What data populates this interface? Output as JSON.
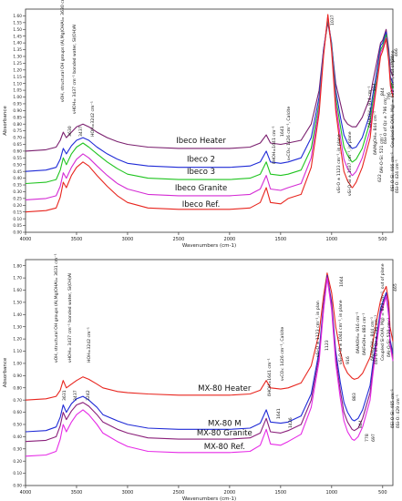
{
  "chart_data": [
    {
      "type": "line",
      "ylabel": "Absorbance",
      "xlabel": "Wavenumbers (cm-1)",
      "xlim": [
        4000,
        400
      ],
      "ylim": [
        0.0,
        1.65
      ],
      "x_ticks": [
        4000,
        3500,
        3000,
        2500,
        2000,
        1500,
        1000,
        500
      ],
      "y_ticks": [
        0.0,
        0.05,
        0.1,
        0.15,
        0.2,
        0.25,
        0.3,
        0.35,
        0.4,
        0.45,
        0.5,
        0.55,
        0.6,
        0.65,
        0.7,
        0.75,
        0.8,
        0.85,
        0.9,
        0.95,
        1.0,
        1.05,
        1.1,
        1.15,
        1.2,
        1.25,
        1.3,
        1.35,
        1.4,
        1.45,
        1.5,
        1.55,
        1.6
      ],
      "grid": false,
      "x": [
        4000,
        3800,
        3700,
        3660,
        3630,
        3600,
        3550,
        3500,
        3437,
        3380,
        3300,
        3200,
        3100,
        3000,
        2800,
        2500,
        2200,
        2000,
        1800,
        1700,
        1641,
        1600,
        1500,
        1426,
        1300,
        1200,
        1123,
        1080,
        1037,
        1000,
        960,
        914,
        880,
        844,
        800,
        796,
        760,
        700,
        622,
        600,
        560,
        521,
        500,
        466,
        440,
        424,
        400
      ],
      "series": [
        {
          "name": "Ibeco Heater",
          "color": "#7a1f6e",
          "values": [
            0.6,
            0.61,
            0.63,
            0.68,
            0.74,
            0.7,
            0.74,
            0.78,
            0.8,
            0.78,
            0.74,
            0.7,
            0.67,
            0.65,
            0.63,
            0.62,
            0.62,
            0.62,
            0.63,
            0.66,
            0.72,
            0.66,
            0.65,
            0.66,
            0.68,
            0.8,
            1.05,
            1.35,
            1.55,
            1.38,
            1.1,
            0.95,
            0.84,
            0.8,
            0.78,
            0.78,
            0.78,
            0.85,
            1.0,
            1.1,
            1.25,
            1.4,
            1.42,
            1.5,
            1.35,
            1.2,
            1.15
          ]
        },
        {
          "name": "Ibeco 2",
          "color": "#1f2ad6",
          "values": [
            0.45,
            0.46,
            0.48,
            0.54,
            0.62,
            0.58,
            0.64,
            0.68,
            0.7,
            0.68,
            0.63,
            0.58,
            0.54,
            0.51,
            0.49,
            0.48,
            0.48,
            0.48,
            0.49,
            0.52,
            0.6,
            0.52,
            0.51,
            0.52,
            0.55,
            0.7,
            1.0,
            1.35,
            1.57,
            1.4,
            1.05,
            0.85,
            0.72,
            0.66,
            0.62,
            0.62,
            0.63,
            0.7,
            0.88,
            1.0,
            1.18,
            1.38,
            1.4,
            1.48,
            1.32,
            1.15,
            1.1
          ]
        },
        {
          "name": "Ibeco 3",
          "color": "#1fc41f",
          "values": [
            0.36,
            0.37,
            0.39,
            0.46,
            0.55,
            0.5,
            0.58,
            0.63,
            0.66,
            0.63,
            0.58,
            0.52,
            0.47,
            0.43,
            0.4,
            0.39,
            0.39,
            0.39,
            0.4,
            0.43,
            0.52,
            0.43,
            0.42,
            0.43,
            0.46,
            0.62,
            0.95,
            1.33,
            1.58,
            1.38,
            1.0,
            0.78,
            0.63,
            0.57,
            0.52,
            0.52,
            0.54,
            0.62,
            0.82,
            0.95,
            1.13,
            1.35,
            1.38,
            1.46,
            1.3,
            1.12,
            1.06
          ]
        },
        {
          "name": "Ibeco Granite",
          "color": "#d42bd4",
          "values": [
            0.24,
            0.25,
            0.27,
            0.34,
            0.44,
            0.4,
            0.48,
            0.54,
            0.58,
            0.55,
            0.49,
            0.42,
            0.36,
            0.32,
            0.28,
            0.27,
            0.27,
            0.27,
            0.28,
            0.32,
            0.42,
            0.32,
            0.31,
            0.33,
            0.36,
            0.55,
            0.92,
            1.32,
            1.6,
            1.36,
            0.95,
            0.7,
            0.54,
            0.47,
            0.42,
            0.42,
            0.45,
            0.55,
            0.76,
            0.9,
            1.1,
            1.33,
            1.36,
            1.44,
            1.28,
            1.1,
            1.03
          ]
        },
        {
          "name": "Ibeco Ref.",
          "color": "#e8251e",
          "values": [
            0.15,
            0.16,
            0.18,
            0.26,
            0.37,
            0.33,
            0.42,
            0.48,
            0.52,
            0.49,
            0.42,
            0.34,
            0.27,
            0.22,
            0.18,
            0.17,
            0.17,
            0.17,
            0.18,
            0.22,
            0.33,
            0.22,
            0.21,
            0.25,
            0.28,
            0.48,
            0.88,
            1.3,
            1.61,
            1.34,
            0.9,
            0.63,
            0.45,
            0.38,
            0.33,
            0.33,
            0.37,
            0.48,
            0.7,
            0.86,
            1.08,
            1.3,
            1.34,
            1.43,
            1.26,
            1.08,
            1.0
          ]
        }
      ],
      "curve_labels": [
        "Ibeco Heater",
        "Ibeco 2",
        "Ibeco 3",
        "Ibeco Granite",
        "Ibeco  Ref."
      ],
      "annotations": [
        "3630",
        "3437",
        "νOH, structural OH groups (Al,Mg)OHAl= 3630 cm⁻¹",
        "νHOH= 3437 cm⁻¹ bonded water, Si(OH)Al",
        "HOH=3242 cm⁻¹",
        "1641",
        "δHOH=1641 cm⁻¹",
        "ν₃CO₃: 1426 cm⁻¹, Calcite",
        "νSi-O ± 1123 cm⁻¹, in plane",
        "1037",
        "νSi-O-Si ± 1037 cm⁻¹, in plane",
        "914",
        "δAlAlOH= 914 cm⁻¹",
        "844",
        "δAlMgOH= 844 cm⁻¹",
        "796",
        "δSi-O of Qz ± 796 cm⁻¹",
        "622",
        "Coupled Si-O(Al, Mg) = 622 cm⁻¹, out of plane",
        "δAl-O-Si: 521 cm⁻¹",
        "466",
        "424",
        "δSi-O-Si: 466 cm⁻¹",
        "δSi-O: 424 cm⁻¹"
      ]
    },
    {
      "type": "line",
      "ylabel": "Absorbance",
      "xlabel": "Wavenumbers (cm-1)",
      "xlim": [
        4000,
        400
      ],
      "ylim": [
        0.0,
        1.85
      ],
      "x_ticks": [
        4000,
        3500,
        3000,
        2500,
        2000,
        1500,
        1000,
        500
      ],
      "y_ticks": [
        0.0,
        0.1,
        0.2,
        0.3,
        0.4,
        0.5,
        0.6,
        0.7,
        0.8,
        0.9,
        1.0,
        1.1,
        1.2,
        1.3,
        1.4,
        1.5,
        1.6,
        1.7,
        1.8
      ],
      "grid": false,
      "x": [
        4000,
        3800,
        3700,
        3660,
        3631,
        3600,
        3550,
        3500,
        3437,
        3380,
        3300,
        3242,
        3100,
        3000,
        2800,
        2500,
        2200,
        2000,
        1800,
        1700,
        1641,
        1600,
        1500,
        1426,
        1300,
        1200,
        1123,
        1080,
        1044,
        1000,
        960,
        916,
        880,
        844,
        800,
        778,
        740,
        697,
        623,
        600,
        560,
        520,
        500,
        465,
        440,
        429,
        400
      ],
      "series": [
        {
          "name": "MX-80 Heater",
          "color": "#e8251e",
          "values": [
            0.7,
            0.71,
            0.73,
            0.78,
            0.86,
            0.8,
            0.83,
            0.86,
            0.89,
            0.87,
            0.83,
            0.8,
            0.77,
            0.76,
            0.75,
            0.74,
            0.74,
            0.74,
            0.75,
            0.78,
            0.86,
            0.8,
            0.79,
            0.8,
            0.84,
            0.98,
            1.25,
            1.55,
            1.74,
            1.58,
            1.3,
            1.1,
            0.98,
            0.92,
            0.88,
            0.87,
            0.88,
            0.92,
            1.05,
            1.15,
            1.35,
            1.52,
            1.57,
            1.63,
            1.5,
            1.3,
            1.18
          ]
        },
        {
          "name": "MX-80 M",
          "color": "#1f2ad6",
          "values": [
            0.44,
            0.45,
            0.48,
            0.56,
            0.66,
            0.6,
            0.67,
            0.71,
            0.73,
            0.7,
            0.64,
            0.58,
            0.53,
            0.5,
            0.47,
            0.46,
            0.46,
            0.46,
            0.47,
            0.51,
            0.62,
            0.52,
            0.51,
            0.52,
            0.57,
            0.75,
            1.1,
            1.48,
            1.72,
            1.5,
            1.1,
            0.85,
            0.68,
            0.6,
            0.54,
            0.53,
            0.55,
            0.62,
            0.82,
            0.97,
            1.22,
            1.45,
            1.5,
            1.58,
            1.42,
            1.2,
            1.08
          ]
        },
        {
          "name": "MX-80 Granite",
          "color": "#8a1f7a",
          "values": [
            0.36,
            0.37,
            0.4,
            0.49,
            0.6,
            0.54,
            0.61,
            0.66,
            0.68,
            0.65,
            0.58,
            0.52,
            0.46,
            0.43,
            0.39,
            0.38,
            0.38,
            0.38,
            0.39,
            0.43,
            0.55,
            0.44,
            0.43,
            0.45,
            0.5,
            0.7,
            1.06,
            1.45,
            1.71,
            1.47,
            1.05,
            0.78,
            0.6,
            0.52,
            0.46,
            0.45,
            0.47,
            0.55,
            0.76,
            0.92,
            1.18,
            1.42,
            1.47,
            1.56,
            1.4,
            1.17,
            1.05
          ]
        },
        {
          "name": "MX-80 Ref.",
          "color": "#e62ae6",
          "values": [
            0.24,
            0.25,
            0.28,
            0.38,
            0.5,
            0.44,
            0.52,
            0.58,
            0.62,
            0.58,
            0.5,
            0.43,
            0.36,
            0.32,
            0.28,
            0.27,
            0.27,
            0.27,
            0.28,
            0.33,
            0.46,
            0.34,
            0.33,
            0.36,
            0.42,
            0.64,
            1.02,
            1.43,
            1.7,
            1.44,
            1.0,
            0.72,
            0.53,
            0.44,
            0.38,
            0.37,
            0.4,
            0.48,
            0.7,
            0.88,
            1.15,
            1.4,
            1.45,
            1.55,
            1.38,
            1.15,
            1.02
          ]
        }
      ],
      "curve_labels": [
        "MX-80 Heater",
        "MX-80 M",
        "MX-80 Granite",
        "MX-80 Ref."
      ],
      "annotations": [
        "3631",
        "3437",
        "3242",
        "νOH, structural OH groups (Al,Mg)OHAl= 3631 cm⁻¹",
        "νHOH= 3437 cm⁻¹ bonded water, Si(OH)Al",
        "HOH=3242 cm⁻¹",
        "1641",
        "δHOH=1641 cm⁻¹",
        "1426",
        "ν₃CO₃: 1426 cm⁻¹, Calcite",
        "1123",
        "νSi-O ± 1123 cm⁻¹, in plan",
        "1044",
        "νSi-O-Si ± 1044 cm⁻¹, in plane",
        "916",
        "δAlAlOH= 916 cm⁻¹",
        "883",
        "δAlFeOH= 883 cm⁻¹",
        "844",
        "δAlMgOH= 844 cm⁻¹",
        "778",
        "δSi-O of Qz ± 796 cm⁻¹",
        "697",
        "Coupled Si-O(Al, Mg) = 623 cm⁻¹, out of plane",
        "δAl-O-Si: 520 cm⁻¹",
        "465",
        "δSi-O-Si: 465 cm⁻¹",
        "δSi-O: 429 cm⁻¹"
      ]
    }
  ]
}
